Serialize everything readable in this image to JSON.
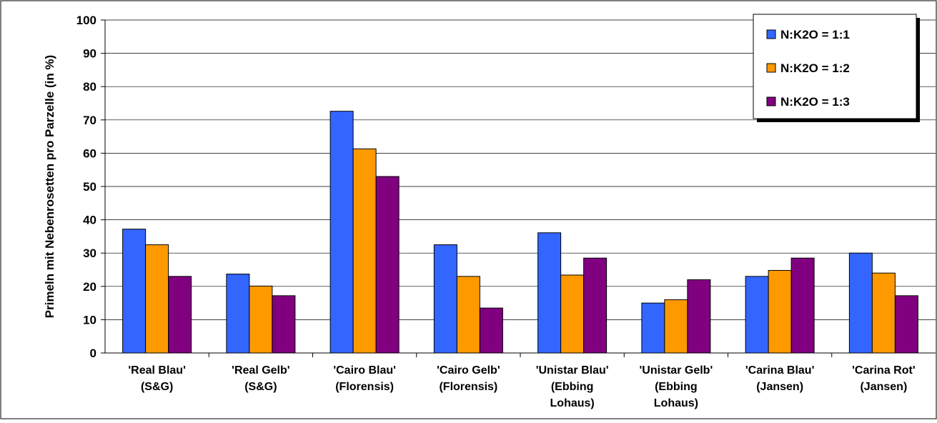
{
  "chart_data": {
    "type": "bar",
    "title": "",
    "xlabel": "",
    "ylabel": "Primeln mit Nebenrosetten pro Parzelle (in %)",
    "ylim": [
      0,
      100
    ],
    "yticks": [
      0,
      10,
      20,
      30,
      40,
      50,
      60,
      70,
      80,
      90,
      100
    ],
    "grid": "horizontal",
    "legend_position": "top-right",
    "categories": [
      [
        "'Real Blau'",
        "(S&G)"
      ],
      [
        "'Real Gelb'",
        "(S&G)"
      ],
      [
        "'Cairo Blau'",
        "(Florensis)"
      ],
      [
        "'Cairo Gelb'",
        "(Florensis)"
      ],
      [
        "'Unistar Blau'",
        "(Ebbing",
        "Lohaus)"
      ],
      [
        "'Unistar Gelb'",
        "(Ebbing",
        "Lohaus)"
      ],
      [
        "'Carina Blau'",
        "(Jansen)"
      ],
      [
        "'Carina Rot'",
        "(Jansen)"
      ]
    ],
    "series": [
      {
        "name": "N:K2O = 1:1",
        "color": "#3366ff",
        "values": [
          37.2,
          23.7,
          72.6,
          32.5,
          36.1,
          15.0,
          23.0,
          30.0
        ]
      },
      {
        "name": "N:K2O = 1:2",
        "color": "#ff9900",
        "values": [
          32.5,
          20.1,
          61.3,
          23.0,
          23.4,
          16.0,
          24.8,
          24.0
        ]
      },
      {
        "name": "N:K2O = 1:3",
        "color": "#800080",
        "values": [
          23.0,
          17.2,
          53.0,
          13.5,
          28.5,
          22.0,
          28.5,
          17.2
        ]
      }
    ]
  }
}
